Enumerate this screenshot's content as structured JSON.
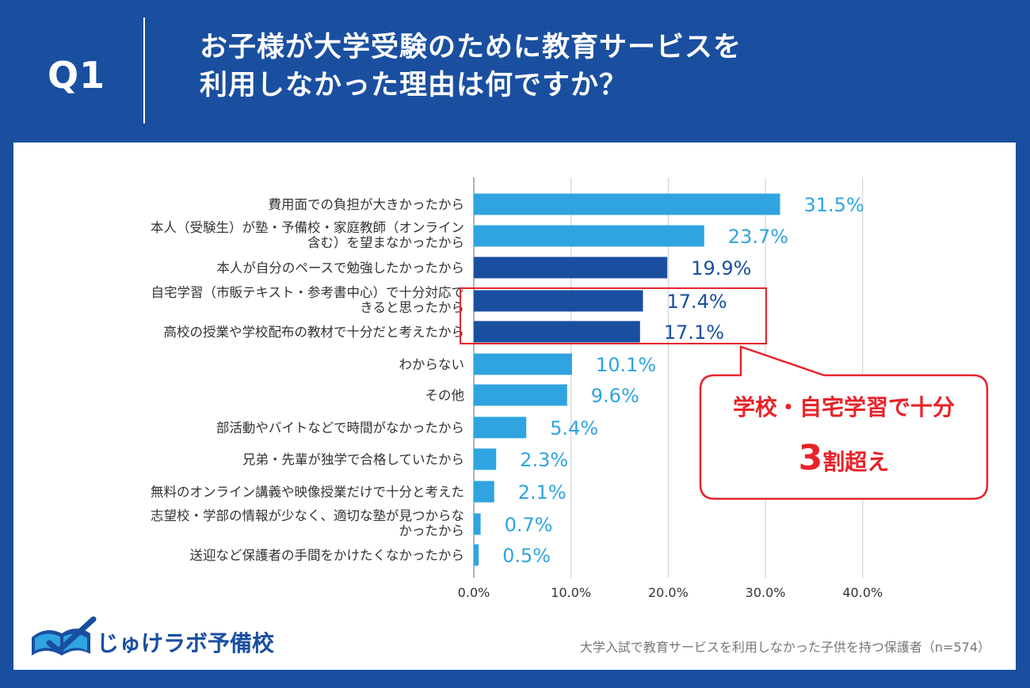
{
  "header": {
    "q_label": "Q1",
    "title_line1": "お子様が大学受験のために教育サービスを",
    "title_line2": "利用しなかった理由は何ですか？"
  },
  "chart_data": {
    "type": "bar",
    "orientation": "horizontal",
    "categories": [
      [
        "費用面での負担が大きかったから"
      ],
      [
        "本人（受験生）が塾・予備校・家庭教師（オンライン",
        "含む）を望まなかったから"
      ],
      [
        "本人が自分のペースで勉強したかったから"
      ],
      [
        "自宅学習（市販テキスト・参考書中心）で十分対応で",
        "きると思ったから"
      ],
      [
        "高校の授業や学校配布の教材で十分だと考えたから"
      ],
      [
        "わからない"
      ],
      [
        "その他"
      ],
      [
        "部活動やバイトなどで時間がなかったから"
      ],
      [
        "兄弟・先輩が独学で合格していたから"
      ],
      [
        "無料のオンライン講義や映像授業だけで十分と考えた"
      ],
      [
        "志望校・学部の情報が少なく、適切な塾が見つからな",
        "かったから"
      ],
      [
        "送迎など保護者の手間をかけたくなかったから"
      ]
    ],
    "values": [
      31.5,
      23.7,
      19.9,
      17.4,
      17.1,
      10.1,
      9.6,
      5.4,
      2.3,
      2.1,
      0.7,
      0.5
    ],
    "value_labels": [
      "31.5%",
      "23.7%",
      "19.9%",
      "17.4%",
      "17.1%",
      "10.1%",
      "9.6%",
      "5.4%",
      "2.3%",
      "2.1%",
      "0.7%",
      "0.5%"
    ],
    "highlighted": [
      false,
      false,
      true,
      true,
      true,
      false,
      false,
      false,
      false,
      false,
      false,
      false
    ],
    "xlim": [
      0,
      40
    ],
    "xticks": [
      "0.0%",
      "10.0%",
      "20.0%",
      "30.0%",
      "40.0%"
    ],
    "grid": true,
    "colors": {
      "light": "#2fa4e0",
      "dark": "#1a4fa0"
    }
  },
  "callout": {
    "line1": "学校・自宅学習で十分",
    "number": "3",
    "line2": "割超え",
    "color": "#e8232a"
  },
  "logo": {
    "text": "じゅけラボ予備校"
  },
  "footnote": "大学入試で教育サービスを利用しなかった子供を持つ保護者（n=574）"
}
